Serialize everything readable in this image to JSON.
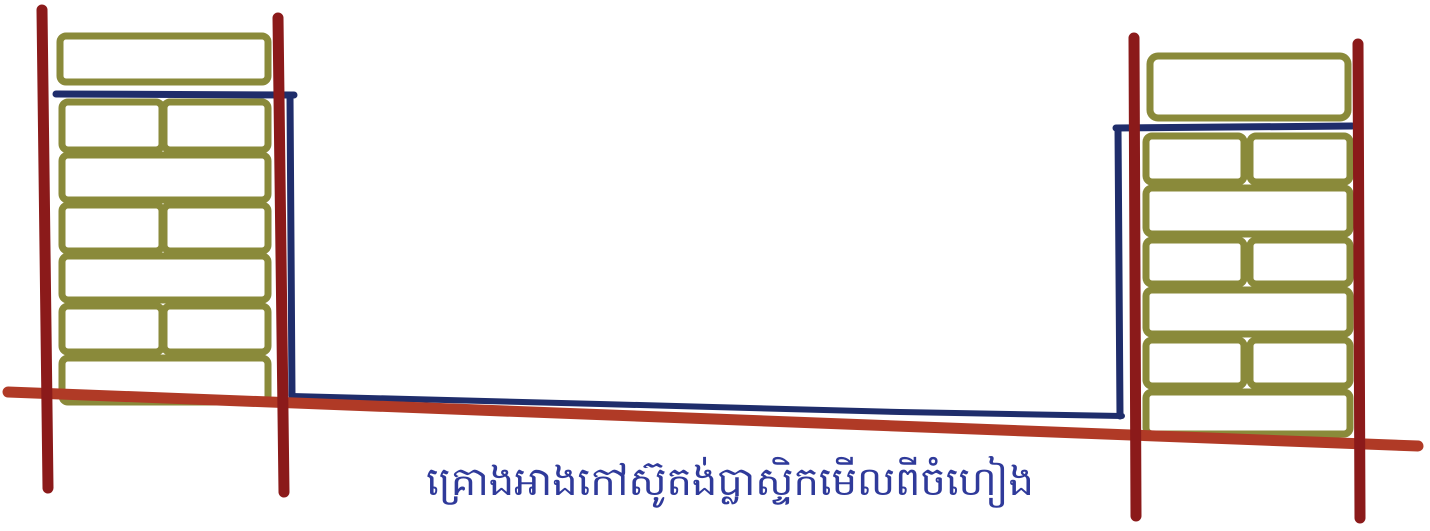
{
  "caption": "គ្រោងអាងកៅស៊ូតង់ប្លាស្ទិកមើលពីចំហៀង",
  "colors": {
    "post": "#8b1a1a",
    "ground": "#b03a26",
    "liner": "#1f2d6b",
    "brick_stroke": "#8a8a3a",
    "background": "#ffffff"
  }
}
